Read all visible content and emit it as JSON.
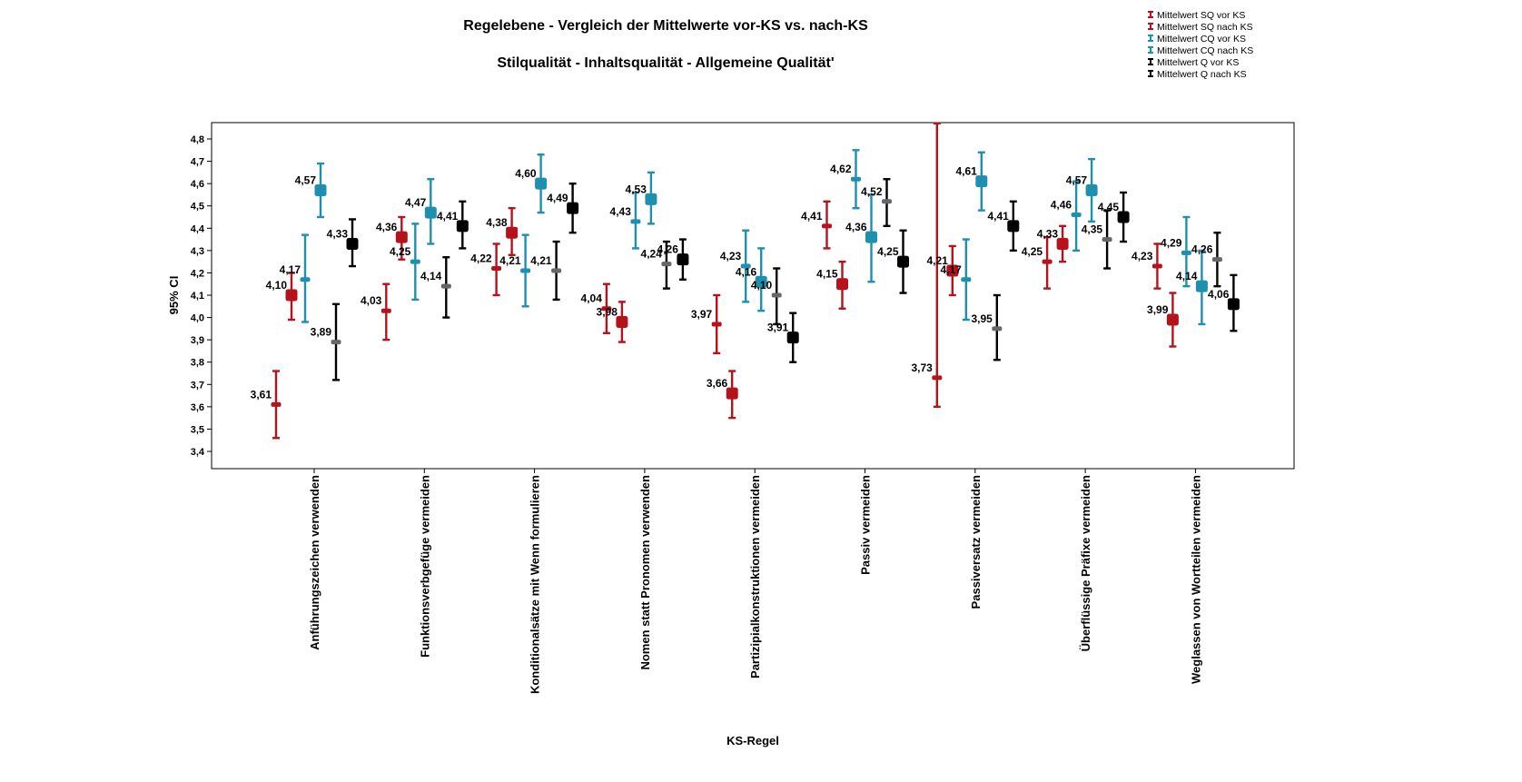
{
  "chart_data": {
    "type": "errorbar",
    "title": "Regelebene - Vergleich der Mittelwerte vor-KS vs. nach-KS",
    "subtitle": "Stilqualität - Inhaltsqualität - Allgemeine Qualität'",
    "xlabel": "KS-Regel",
    "ylabel": "95% CI",
    "ylim": [
      3.4,
      4.8
    ],
    "yticks": [
      "3,4",
      "3,5",
      "3,6",
      "3,7",
      "3,8",
      "3,9",
      "4,0",
      "4,1",
      "4,2",
      "4,3",
      "4,4",
      "4,5",
      "4,6",
      "4,7",
      "4,8"
    ],
    "grid": false,
    "legend_position": "top-right",
    "categories": [
      "Anführungszeichen verwenden",
      "Funktionsverbgefüge vermeiden",
      "Konditionalsätze mit Wenn formulieren",
      "Nomen statt Pronomen verwenden",
      "Partizipialkonstruktionen vermeiden",
      "Passiv vermeiden",
      "Passiversatz vermeiden",
      "Überflüssige Präfixe vermeiden",
      "Weglassen von Wortteilen vermeiden"
    ],
    "series": [
      {
        "name": "Mittelwert SQ vor KS",
        "color": "#b5121b",
        "marker": "dash",
        "mean": [
          3.61,
          4.03,
          4.22,
          4.04,
          3.97,
          4.41,
          3.73,
          4.25,
          4.23
        ],
        "lower": [
          3.46,
          3.9,
          4.1,
          3.93,
          3.84,
          4.31,
          3.6,
          4.13,
          4.13
        ],
        "upper": [
          3.76,
          4.15,
          4.33,
          4.15,
          4.1,
          4.52,
          4.87,
          4.36,
          4.33
        ],
        "labels": [
          "3,61",
          "4,03",
          "4,22",
          "4,04",
          "3,97",
          "4,41",
          "3,73",
          "4,25",
          "4,23"
        ]
      },
      {
        "name": "Mittelwert SQ nach KS",
        "color": "#b5121b",
        "marker": "square",
        "mean": [
          4.1,
          4.36,
          4.38,
          3.98,
          3.66,
          4.15,
          4.21,
          4.33,
          3.99
        ],
        "lower": [
          3.99,
          4.26,
          4.28,
          3.89,
          3.55,
          4.04,
          4.1,
          4.25,
          3.87
        ],
        "upper": [
          4.2,
          4.45,
          4.49,
          4.07,
          3.76,
          4.25,
          4.32,
          4.41,
          4.11
        ],
        "labels": [
          "4,10",
          "4,36",
          "4,38",
          "3,98",
          "3,66",
          "4,15",
          "4,21",
          "4,33",
          "3,99"
        ]
      },
      {
        "name": "Mittelwert CQ vor KS",
        "color": "#1f8fb0",
        "marker": "dash",
        "mean": [
          4.17,
          4.25,
          4.21,
          4.43,
          4.23,
          4.62,
          4.17,
          4.46,
          4.29
        ],
        "lower": [
          3.98,
          4.08,
          4.05,
          4.31,
          4.07,
          4.49,
          3.99,
          4.3,
          4.14
        ],
        "upper": [
          4.37,
          4.42,
          4.37,
          4.56,
          4.39,
          4.75,
          4.35,
          4.61,
          4.45
        ],
        "labels": [
          "4,17",
          "4,25",
          "4,21",
          "4,43",
          "4,23",
          "4,62",
          "4,17",
          "4,46",
          "4,29"
        ]
      },
      {
        "name": "Mittelwert CQ nach KS",
        "color": "#1f8fb0",
        "marker": "square",
        "mean": [
          4.57,
          4.47,
          4.6,
          4.53,
          4.16,
          4.36,
          4.61,
          4.57,
          4.14
        ],
        "lower": [
          4.45,
          4.33,
          4.47,
          4.42,
          4.03,
          4.16,
          4.48,
          4.43,
          3.97
        ],
        "upper": [
          4.69,
          4.62,
          4.73,
          4.65,
          4.31,
          4.55,
          4.74,
          4.71,
          4.3
        ],
        "labels": [
          "4,57",
          "4,47",
          "4,60",
          "4,53",
          "4,16",
          "4,36",
          "4,61",
          "4,57",
          "4,14"
        ]
      },
      {
        "name": "Mittelwert Q vor KS",
        "color": "#000000",
        "marker": "dash",
        "mean_color": "#666666",
        "mean": [
          3.89,
          4.14,
          4.21,
          4.24,
          4.1,
          4.52,
          3.95,
          4.35,
          4.26
        ],
        "lower": [
          3.72,
          4.0,
          4.08,
          4.13,
          3.97,
          4.41,
          3.81,
          4.22,
          4.14
        ],
        "upper": [
          4.06,
          4.27,
          4.34,
          4.34,
          4.22,
          4.62,
          4.1,
          4.48,
          4.38
        ],
        "labels": [
          "3,89",
          "4,14",
          "4,21",
          "4,24",
          "4,10",
          "4,52",
          "3,95",
          "4,35",
          "4,26"
        ]
      },
      {
        "name": "Mittelwert Q nach KS",
        "color": "#000000",
        "marker": "square",
        "mean": [
          4.33,
          4.41,
          4.49,
          4.26,
          3.91,
          4.25,
          4.41,
          4.45,
          4.06
        ],
        "lower": [
          4.23,
          4.31,
          4.38,
          4.17,
          3.8,
          4.11,
          4.3,
          4.34,
          3.94
        ],
        "upper": [
          4.44,
          4.52,
          4.6,
          4.35,
          4.02,
          4.39,
          4.52,
          4.56,
          4.19
        ],
        "labels": [
          "4,33",
          "4,41",
          "4,49",
          "4,26",
          "3,91",
          "4,25",
          "4,41",
          "4,45",
          "4,06"
        ]
      }
    ]
  }
}
